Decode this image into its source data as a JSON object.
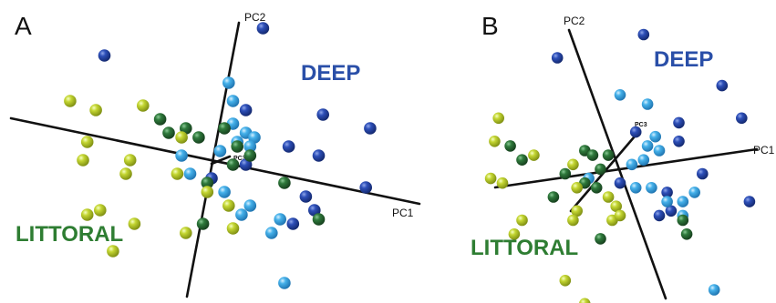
{
  "colors": {
    "deep_text": "#2a4fa8",
    "littoral_text": "#2e7d32",
    "dark_blue": "#1f3f9e",
    "light_blue": "#3aa3de",
    "dark_green": "#2a6e35",
    "yellow_green": "#bdd12e",
    "axis": "#111111"
  },
  "chart_data": [
    {
      "type": "scatter",
      "panel": "A",
      "axes": [
        "PC1",
        "PC2",
        "PC3"
      ],
      "group_labels": [
        "DEEP",
        "LITTORAL"
      ],
      "points": [
        {
          "c": "dark_blue",
          "x": 1.2,
          "y": 3.0
        },
        {
          "c": "dark_blue",
          "x": -2.5,
          "y": 2.4
        },
        {
          "c": "dark_blue",
          "x": 0.8,
          "y": 1.2
        },
        {
          "c": "dark_blue",
          "x": 2.6,
          "y": 1.1
        },
        {
          "c": "dark_blue",
          "x": 3.7,
          "y": 0.8
        },
        {
          "c": "dark_blue",
          "x": 1.8,
          "y": 0.4
        },
        {
          "c": "dark_blue",
          "x": 2.5,
          "y": 0.2
        },
        {
          "c": "dark_blue",
          "x": 3.6,
          "y": -0.5
        },
        {
          "c": "dark_blue",
          "x": 2.2,
          "y": -0.7
        },
        {
          "c": "dark_blue",
          "x": 2.4,
          "y": -1.0
        },
        {
          "c": "dark_blue",
          "x": 1.9,
          "y": -1.3
        },
        {
          "c": "dark_blue",
          "x": 0.8,
          "y": 0.0
        },
        {
          "c": "dark_blue",
          "x": 0.0,
          "y": -0.3
        },
        {
          "c": "light_blue",
          "x": 0.4,
          "y": 1.8
        },
        {
          "c": "light_blue",
          "x": 0.5,
          "y": 1.4
        },
        {
          "c": "light_blue",
          "x": 0.5,
          "y": 0.9
        },
        {
          "c": "light_blue",
          "x": 0.8,
          "y": 0.7
        },
        {
          "c": "light_blue",
          "x": 1.0,
          "y": 0.6
        },
        {
          "c": "light_blue",
          "x": 0.9,
          "y": 0.4
        },
        {
          "c": "light_blue",
          "x": 0.6,
          "y": 0.5
        },
        {
          "c": "light_blue",
          "x": -0.7,
          "y": 0.2
        },
        {
          "c": "light_blue",
          "x": -0.5,
          "y": -0.2
        },
        {
          "c": "light_blue",
          "x": 0.2,
          "y": 0.3
        },
        {
          "c": "light_blue",
          "x": 0.3,
          "y": -0.6
        },
        {
          "c": "light_blue",
          "x": 0.9,
          "y": -0.9
        },
        {
          "c": "light_blue",
          "x": 0.7,
          "y": -1.1
        },
        {
          "c": "light_blue",
          "x": 1.6,
          "y": -1.2
        },
        {
          "c": "light_blue",
          "x": 1.4,
          "y": -1.5
        },
        {
          "c": "light_blue",
          "x": 1.7,
          "y": -2.6
        },
        {
          "c": "dark_green",
          "x": -0.6,
          "y": 0.8
        },
        {
          "c": "dark_green",
          "x": -0.3,
          "y": 0.6
        },
        {
          "c": "dark_green",
          "x": 0.3,
          "y": 0.8
        },
        {
          "c": "dark_green",
          "x": 0.6,
          "y": 0.4
        },
        {
          "c": "dark_green",
          "x": 0.9,
          "y": 0.2
        },
        {
          "c": "dark_green",
          "x": 0.5,
          "y": 0.0
        },
        {
          "c": "dark_green",
          "x": -0.1,
          "y": -0.4
        },
        {
          "c": "dark_green",
          "x": -0.2,
          "y": -1.3
        },
        {
          "c": "dark_green",
          "x": 1.7,
          "y": -0.4
        },
        {
          "c": "dark_green",
          "x": 2.5,
          "y": -1.2
        },
        {
          "c": "dark_green",
          "x": -1.2,
          "y": 1.0
        },
        {
          "c": "dark_green",
          "x": -1.0,
          "y": 0.7
        },
        {
          "c": "yellow_green",
          "x": -3.3,
          "y": 1.4
        },
        {
          "c": "yellow_green",
          "x": -2.7,
          "y": 1.2
        },
        {
          "c": "yellow_green",
          "x": -1.6,
          "y": 1.3
        },
        {
          "c": "yellow_green",
          "x": -2.9,
          "y": 0.5
        },
        {
          "c": "yellow_green",
          "x": -3.0,
          "y": 0.1
        },
        {
          "c": "yellow_green",
          "x": -1.9,
          "y": 0.1
        },
        {
          "c": "yellow_green",
          "x": -2.0,
          "y": -0.2
        },
        {
          "c": "yellow_green",
          "x": -0.7,
          "y": 0.6
        },
        {
          "c": "yellow_green",
          "x": -0.8,
          "y": -0.2
        },
        {
          "c": "yellow_green",
          "x": -0.1,
          "y": -0.6
        },
        {
          "c": "yellow_green",
          "x": 0.4,
          "y": -0.9
        },
        {
          "c": "yellow_green",
          "x": 0.5,
          "y": -1.4
        },
        {
          "c": "yellow_green",
          "x": -2.6,
          "y": -1.0
        },
        {
          "c": "yellow_green",
          "x": -2.9,
          "y": -1.1
        },
        {
          "c": "yellow_green",
          "x": -1.8,
          "y": -1.3
        },
        {
          "c": "yellow_green",
          "x": -2.3,
          "y": -1.9
        },
        {
          "c": "yellow_green",
          "x": -0.6,
          "y": -1.5
        }
      ]
    },
    {
      "type": "scatter",
      "panel": "B",
      "axes": [
        "PC1",
        "PC2",
        "PC3"
      ],
      "group_labels": [
        "DEEP",
        "LITTORAL"
      ],
      "points": [
        {
          "c": "dark_blue",
          "x": 0.6,
          "y": 3.0
        },
        {
          "c": "dark_blue",
          "x": -1.6,
          "y": 2.5
        },
        {
          "c": "dark_blue",
          "x": 2.6,
          "y": 1.9
        },
        {
          "c": "dark_blue",
          "x": 3.1,
          "y": 1.2
        },
        {
          "c": "dark_blue",
          "x": 1.5,
          "y": 1.1
        },
        {
          "c": "dark_blue",
          "x": 0.4,
          "y": 0.9
        },
        {
          "c": "dark_blue",
          "x": 1.5,
          "y": 0.7
        },
        {
          "c": "dark_blue",
          "x": 2.1,
          "y": 0.0
        },
        {
          "c": "dark_blue",
          "x": 1.2,
          "y": -0.4
        },
        {
          "c": "dark_blue",
          "x": 3.3,
          "y": -0.6
        },
        {
          "c": "dark_blue",
          "x": 1.3,
          "y": -0.8
        },
        {
          "c": "dark_blue",
          "x": 1.0,
          "y": -0.9
        },
        {
          "c": "dark_blue",
          "x": 0.0,
          "y": -0.2
        },
        {
          "c": "light_blue",
          "x": 0.0,
          "y": 1.7
        },
        {
          "c": "light_blue",
          "x": 0.7,
          "y": 1.5
        },
        {
          "c": "light_blue",
          "x": 0.9,
          "y": 0.8
        },
        {
          "c": "light_blue",
          "x": 0.7,
          "y": 0.6
        },
        {
          "c": "light_blue",
          "x": 0.6,
          "y": 0.3
        },
        {
          "c": "light_blue",
          "x": 1.0,
          "y": 0.5
        },
        {
          "c": "light_blue",
          "x": 0.3,
          "y": 0.2
        },
        {
          "c": "light_blue",
          "x": 0.4,
          "y": -0.3
        },
        {
          "c": "light_blue",
          "x": 1.2,
          "y": -0.6
        },
        {
          "c": "light_blue",
          "x": 1.6,
          "y": -0.6
        },
        {
          "c": "light_blue",
          "x": 1.9,
          "y": -0.4
        },
        {
          "c": "light_blue",
          "x": -0.8,
          "y": -0.1
        },
        {
          "c": "light_blue",
          "x": 0.8,
          "y": -0.3
        },
        {
          "c": "light_blue",
          "x": 1.6,
          "y": -0.9
        },
        {
          "c": "light_blue",
          "x": 2.4,
          "y": -2.5
        },
        {
          "c": "dark_green",
          "x": -2.8,
          "y": 0.6
        },
        {
          "c": "dark_green",
          "x": -2.5,
          "y": 0.3
        },
        {
          "c": "dark_green",
          "x": -0.9,
          "y": 0.5
        },
        {
          "c": "dark_green",
          "x": -0.7,
          "y": 0.4
        },
        {
          "c": "dark_green",
          "x": -0.3,
          "y": 0.4
        },
        {
          "c": "dark_green",
          "x": -0.5,
          "y": 0.1
        },
        {
          "c": "dark_green",
          "x": -1.4,
          "y": 0.0
        },
        {
          "c": "dark_green",
          "x": -0.9,
          "y": -0.2
        },
        {
          "c": "dark_green",
          "x": -1.7,
          "y": -0.5
        },
        {
          "c": "dark_green",
          "x": -0.6,
          "y": -0.3
        },
        {
          "c": "dark_green",
          "x": 1.6,
          "y": -1.0
        },
        {
          "c": "dark_green",
          "x": 1.7,
          "y": -1.3
        },
        {
          "c": "dark_green",
          "x": -0.5,
          "y": -1.4
        },
        {
          "c": "yellow_green",
          "x": -3.1,
          "y": 1.2
        },
        {
          "c": "yellow_green",
          "x": -3.2,
          "y": 0.7
        },
        {
          "c": "yellow_green",
          "x": -2.2,
          "y": 0.4
        },
        {
          "c": "yellow_green",
          "x": -3.3,
          "y": -0.1
        },
        {
          "c": "yellow_green",
          "x": -3.0,
          "y": -0.2
        },
        {
          "c": "yellow_green",
          "x": -1.2,
          "y": 0.2
        },
        {
          "c": "yellow_green",
          "x": -1.1,
          "y": -0.3
        },
        {
          "c": "yellow_green",
          "x": -1.1,
          "y": -0.8
        },
        {
          "c": "yellow_green",
          "x": -0.3,
          "y": -0.5
        },
        {
          "c": "yellow_green",
          "x": -0.1,
          "y": -0.7
        },
        {
          "c": "yellow_green",
          "x": -0.2,
          "y": -1.0
        },
        {
          "c": "yellow_green",
          "x": 0.0,
          "y": -0.9
        },
        {
          "c": "yellow_green",
          "x": -1.2,
          "y": -1.0
        },
        {
          "c": "yellow_green",
          "x": -2.5,
          "y": -1.0
        },
        {
          "c": "yellow_green",
          "x": -2.7,
          "y": -1.3
        },
        {
          "c": "yellow_green",
          "x": -1.4,
          "y": -2.3
        },
        {
          "c": "yellow_green",
          "x": -0.9,
          "y": -2.8
        }
      ]
    }
  ]
}
